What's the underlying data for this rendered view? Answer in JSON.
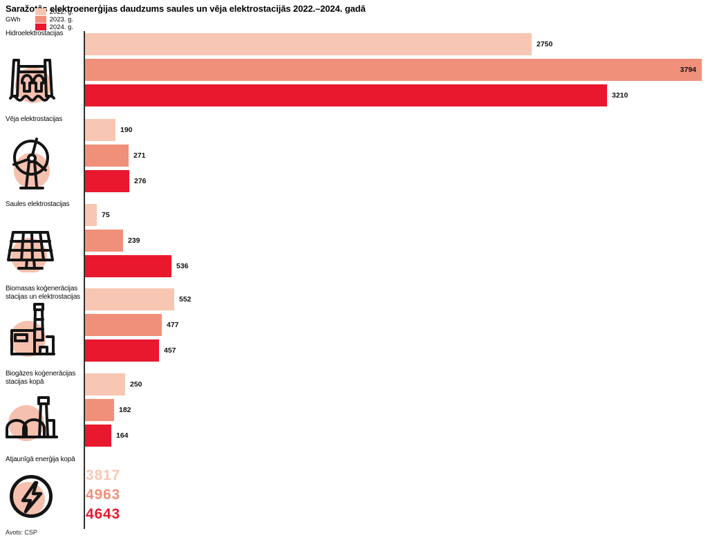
{
  "page": {
    "title": "Saražotās elektroenerģijas daudzums saules un vēja elektrostacijās 2022.–2024. gadā",
    "unit_label": "GWh",
    "source": "Avots: CSP"
  },
  "colors": {
    "year_2022": "#f8c7b4",
    "year_2023": "#f0907a",
    "year_2024": "#e9182e",
    "icon_circle": "#f5c1ae",
    "icon_stroke": "#141414",
    "axis": "#2e2e2e"
  },
  "chart_data": {
    "type": "bar",
    "orientation": "horizontal",
    "unit": "GWh",
    "xlim": [
      0,
      3794
    ],
    "grid": false,
    "legend_position": "top",
    "series_names": [
      "2022. g.",
      "2023. g.",
      "2024. g."
    ],
    "series_colors": [
      "#f8c7b4",
      "#f0907a",
      "#e9182e"
    ],
    "categories": [
      {
        "label": "Hidroelektrostacijas",
        "icon": "hydro-dam",
        "values": [
          2750,
          3794,
          3210
        ],
        "display": "bars"
      },
      {
        "label": "Vēja elektrostacijas",
        "icon": "wind-turbine",
        "values": [
          190,
          271,
          276
        ],
        "display": "bars"
      },
      {
        "label": "Saules elektrostacijas",
        "icon": "solar-panel",
        "values": [
          75,
          239,
          536
        ],
        "display": "bars"
      },
      {
        "label": "Biomasas koģenerācijas\nstacijas un elektrostacijas",
        "icon": "biomass-plant",
        "values": [
          552,
          477,
          457
        ],
        "display": "bars"
      },
      {
        "label": "Biogāzes koģenerācijas\nstacijas kopā",
        "icon": "biogas-plant",
        "values": [
          250,
          182,
          164
        ],
        "display": "bars"
      },
      {
        "label": "Atjaunīgā enerģija kopā",
        "icon": "lightning-bolt",
        "values": [
          3817,
          4963,
          4643
        ],
        "display": "numbers"
      }
    ]
  }
}
